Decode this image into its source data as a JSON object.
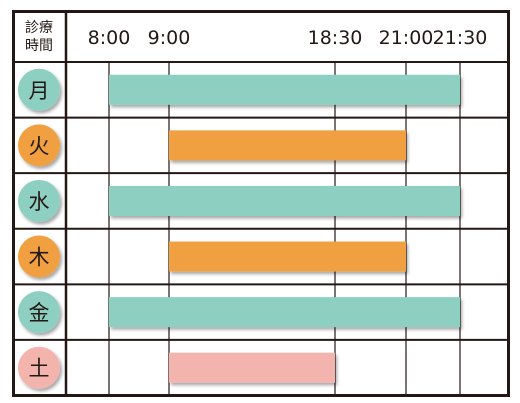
{
  "header": {
    "line1": "診療",
    "line2": "時間"
  },
  "colors": {
    "teal": "#8dd0c2",
    "orange": "#f0a040",
    "pink": "#f4b4ae",
    "line": "#231815"
  },
  "chart_data": {
    "type": "gantt",
    "x_ticks": [
      "8:00",
      "9:00",
      "18:30",
      "21:00",
      "21:30"
    ],
    "grid": true,
    "rows": [
      {
        "day": "月",
        "color": "teal",
        "start": "8:00",
        "end": "21:30"
      },
      {
        "day": "火",
        "color": "orange",
        "start": "9:00",
        "end": "21:00"
      },
      {
        "day": "水",
        "color": "teal",
        "start": "8:00",
        "end": "21:30"
      },
      {
        "day": "木",
        "color": "orange",
        "start": "9:00",
        "end": "21:00"
      },
      {
        "day": "金",
        "color": "teal",
        "start": "8:00",
        "end": "21:30"
      },
      {
        "day": "土",
        "color": "pink",
        "start": "9:00",
        "end": "18:30"
      }
    ]
  }
}
